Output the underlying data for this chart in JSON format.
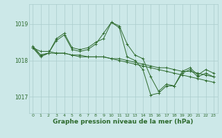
{
  "background_color": "#cce8e8",
  "grid_color": "#aacccc",
  "line_color": "#2d6a2d",
  "xlabel": "Graphe pression niveau de la mer (hPa)",
  "xlabel_fontsize": 6.5,
  "ylim": [
    1016.55,
    1019.55
  ],
  "xlim": [
    -0.5,
    23.5
  ],
  "series": [
    [
      1018.35,
      1018.1,
      1018.2,
      1018.55,
      1018.7,
      1018.3,
      1018.25,
      1018.3,
      1018.45,
      1018.75,
      1019.05,
      1018.95,
      1018.45,
      1018.15,
      1018.05,
      1017.55,
      1017.15,
      1017.35,
      1017.3,
      1017.7,
      1017.8,
      1017.6,
      1017.75,
      1017.65
    ],
    [
      1018.35,
      1018.15,
      1018.2,
      1018.2,
      1018.2,
      1018.15,
      1018.1,
      1018.1,
      1018.1,
      1018.1,
      1018.05,
      1018.0,
      1017.95,
      1017.9,
      1017.85,
      1017.8,
      1017.75,
      1017.7,
      1017.65,
      1017.6,
      1017.55,
      1017.5,
      1017.45,
      1017.4
    ],
    [
      1018.35,
      1018.25,
      1018.25,
      1018.2,
      1018.2,
      1018.15,
      1018.15,
      1018.1,
      1018.1,
      1018.1,
      1018.05,
      1018.05,
      1018.0,
      1017.95,
      1017.9,
      1017.85,
      1017.8,
      1017.8,
      1017.75,
      1017.7,
      1017.7,
      1017.65,
      1017.6,
      1017.55
    ],
    [
      1018.4,
      1018.15,
      1018.2,
      1018.6,
      1018.75,
      1018.35,
      1018.3,
      1018.35,
      1018.5,
      1018.6,
      1019.05,
      1018.9,
      1018.1,
      1018.0,
      1017.75,
      1017.05,
      1017.1,
      1017.3,
      1017.3,
      1017.65,
      1017.75,
      1017.55,
      1017.65,
      1017.55
    ]
  ]
}
